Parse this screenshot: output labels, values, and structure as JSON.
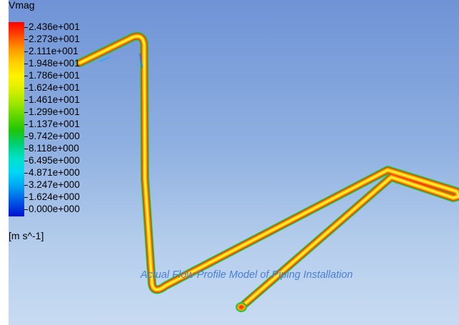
{
  "legend": {
    "title": "Vmag",
    "units": "[m s^-1]",
    "labels": [
      "2.436e+001",
      "2.273e+001",
      "2.111e+001",
      "1.948e+001",
      "1.786e+001",
      "1.624e+001",
      "1.461e+001",
      "1.299e+001",
      "1.137e+001",
      "9.742e+000",
      "8.118e+000",
      "6.495e+000",
      "4.871e+000",
      "3.247e+000",
      "1.624e+000",
      "0.000e+000"
    ],
    "colors": [
      "#ff0000",
      "#ff4a00",
      "#ff9a00",
      "#ffd100",
      "#fff200",
      "#d6f000",
      "#9ee600",
      "#5ad500",
      "#1ec40a",
      "#00d07a",
      "#00e2c8",
      "#00d8f5",
      "#00a8f2",
      "#0064e8",
      "#0030dc",
      "#0010d2"
    ]
  },
  "caption": "Actual Flow Profile Model of Piping Installation",
  "colors": {
    "pipe_outer": "#20c840",
    "pipe_body": "#ff9c00",
    "pipe_core": "#fff030",
    "background_top": "#6f93d6",
    "background_bottom": "#c8dbf2",
    "caption": "#4a7fd4"
  }
}
